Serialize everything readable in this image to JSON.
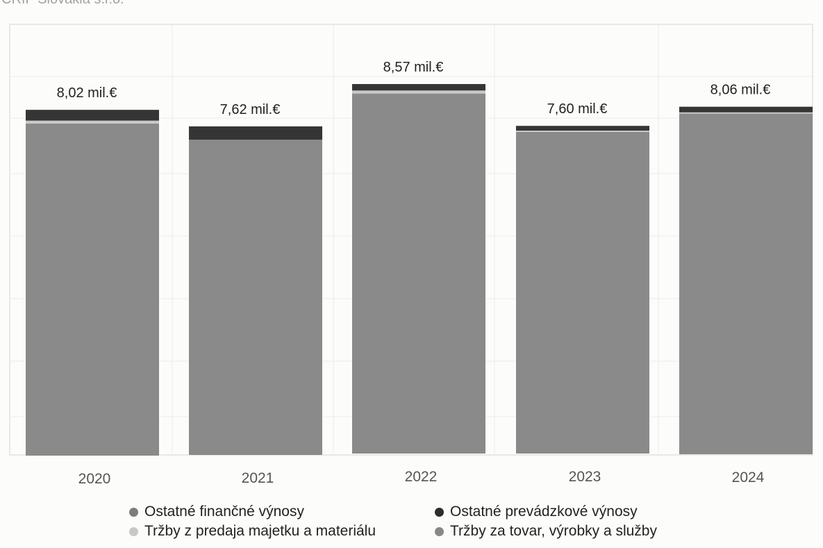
{
  "header": {
    "title": "CRIF Slovakia",
    "subtitle": "s.r.o."
  },
  "legend": {
    "items": [
      {
        "label": "Ostatné finančné výnosy",
        "color": "#7d7d7d"
      },
      {
        "label": "Ostatné prevádzkové výnosy",
        "color": "#2d2d2d"
      },
      {
        "label": "Tržby z predaja majetku a materiálu",
        "color": "#c8c8c8"
      },
      {
        "label": "Tržby za tovar, výrobky a služby",
        "color": "#888888"
      }
    ]
  },
  "chart_data": {
    "type": "bar",
    "stacked": true,
    "categories": [
      "2020",
      "2021",
      "2022",
      "2023",
      "2024"
    ],
    "series": [
      {
        "name": "Tržby za tovar, výrobky a služby",
        "color": "#8a8a8a",
        "values": [
          7.7,
          7.31,
          8.35,
          7.46,
          7.9
        ]
      },
      {
        "name": "Tržby z predaja majetku a materiálu",
        "color": "#c8c8c8",
        "values": [
          0.07,
          0.0,
          0.07,
          0.03,
          0.03
        ]
      },
      {
        "name": "Ostatné finančné výnosy",
        "color": "#7d7d7d",
        "values": [
          0.0,
          0.0,
          0.0,
          0.0,
          0.0
        ]
      },
      {
        "name": "Ostatné prevádzkové výnosy",
        "color": "#353535",
        "values": [
          0.25,
          0.31,
          0.15,
          0.11,
          0.13
        ]
      }
    ],
    "totals": [
      8.02,
      7.62,
      8.57,
      7.6,
      8.06
    ],
    "total_labels": [
      "8,02 mil.€",
      "7,62 mil.€",
      "8,57 mil.€",
      "7,60 mil.€",
      "8,06 mil.€"
    ],
    "ylim": [
      0,
      8.57
    ],
    "grid": true
  }
}
